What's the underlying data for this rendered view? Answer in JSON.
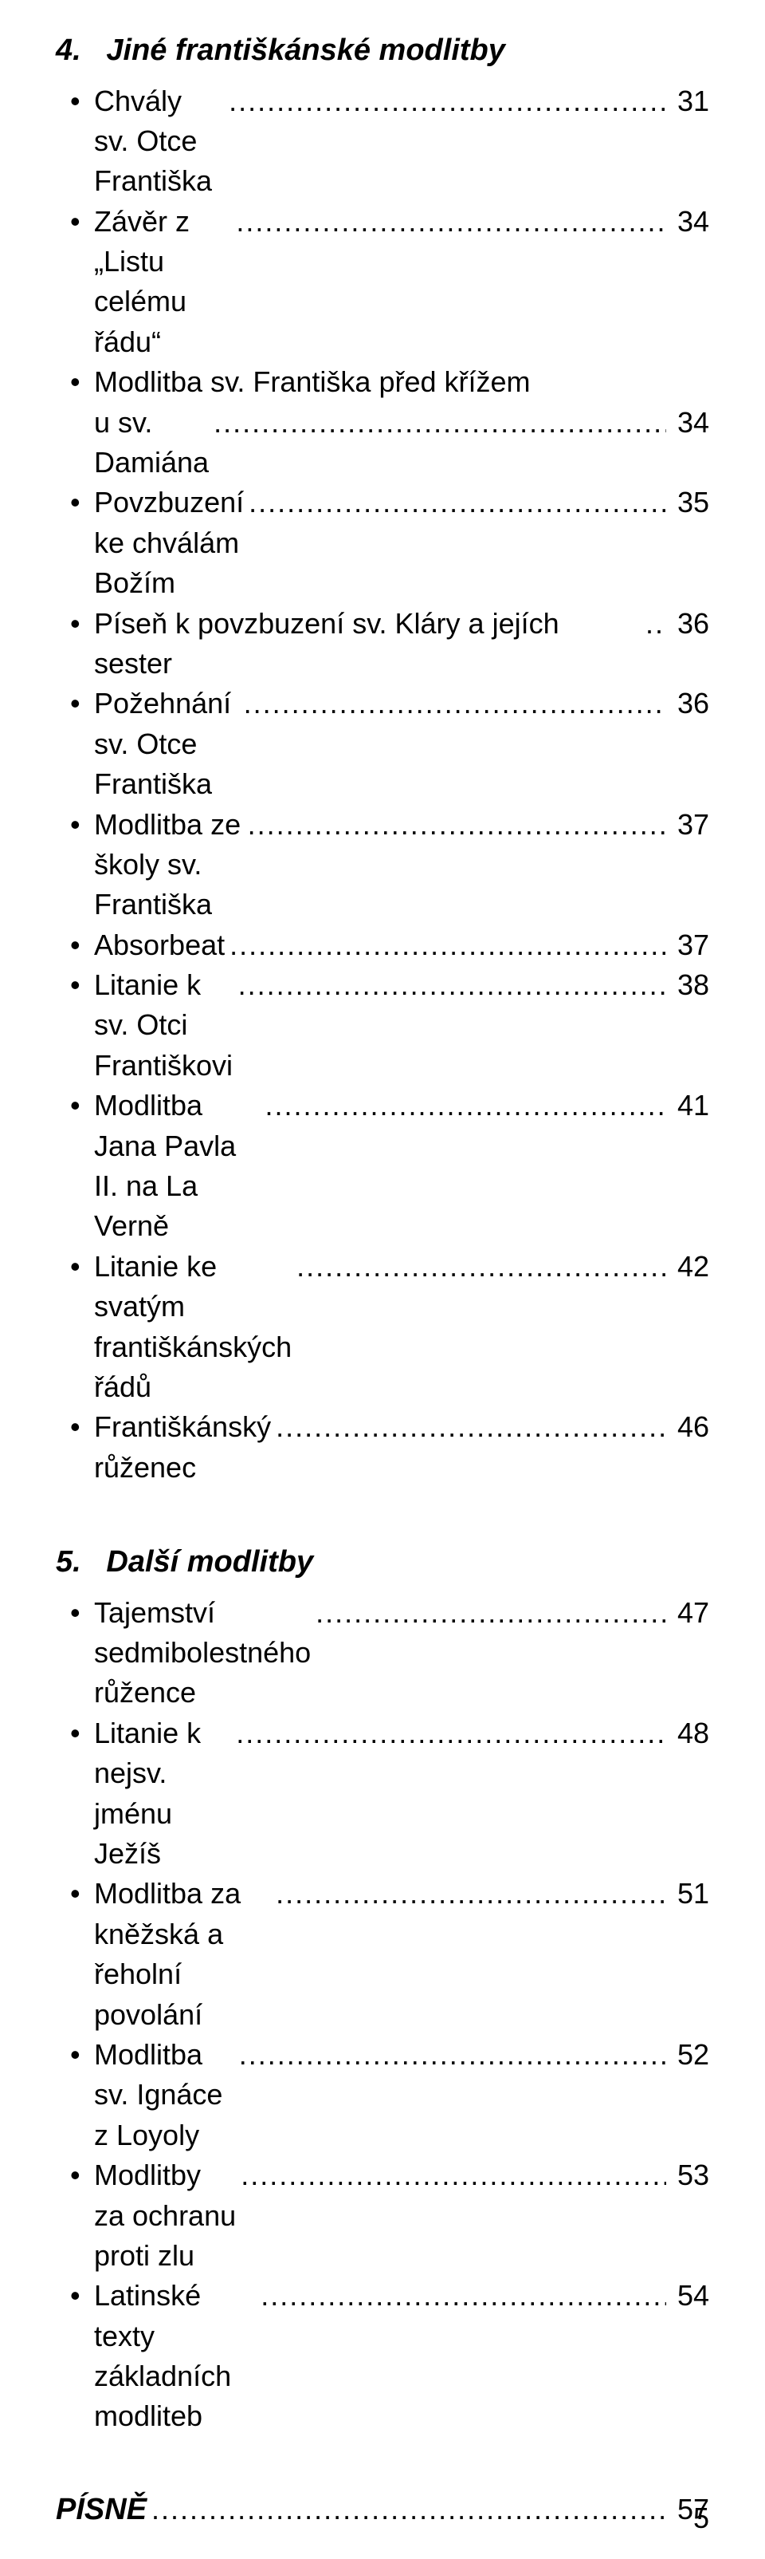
{
  "colors": {
    "text": "#000000",
    "background": "#ffffff"
  },
  "fontsize": {
    "body": 36,
    "heading": 38
  },
  "sections": [
    {
      "number": "4.",
      "title": "Jiné františkánské modlitby",
      "entries": [
        {
          "label": "Chvály sv. Otce Františka",
          "page": "31"
        },
        {
          "label": "Závěr z „Listu celému řádu“",
          "page": "34"
        },
        {
          "label_line1": "Modlitba sv. Františka před křížem",
          "label_line2": "u sv. Damiána",
          "page": "34"
        },
        {
          "label": "Povzbuzení ke chválám Božím",
          "page": "35"
        },
        {
          "label": "Píseň k povzbuzení sv. Kláry a jejích sester",
          "page": "36",
          "tight": true
        },
        {
          "label": "Požehnání sv. Otce Františka",
          "page": "36"
        },
        {
          "label": "Modlitba ze školy sv. Františka",
          "page": "37"
        },
        {
          "label": "Absorbeat",
          "page": "37"
        },
        {
          "label": "Litanie k sv. Otci Františkovi",
          "page": "38"
        },
        {
          "label": "Modlitba Jana Pavla II. na La Verně",
          "page": "41"
        },
        {
          "label": "Litanie ke svatým františkánských řádů",
          "page": "42"
        },
        {
          "label": "Františkánský růženec",
          "page": "46"
        }
      ]
    },
    {
      "number": "5.",
      "title": "Další modlitby",
      "entries": [
        {
          "label": "Tajemství sedmibolestného růžence",
          "page": "47"
        },
        {
          "label": "Litanie k nejsv. jménu Ježíš",
          "page": "48"
        },
        {
          "label": "Modlitba za kněžská a řeholní povolání",
          "page": "51"
        },
        {
          "label": "Modlitba sv. Ignáce z Loyoly",
          "page": "52"
        },
        {
          "label": "Modlitby za ochranu proti zlu",
          "page": "53"
        },
        {
          "label": "Latinské texty základních modliteb",
          "page": "54"
        }
      ]
    }
  ],
  "bottom_heading": {
    "label": "PÍSNĚ",
    "page": "57"
  },
  "footer_page": "5",
  "dots": "................................................................................................................."
}
